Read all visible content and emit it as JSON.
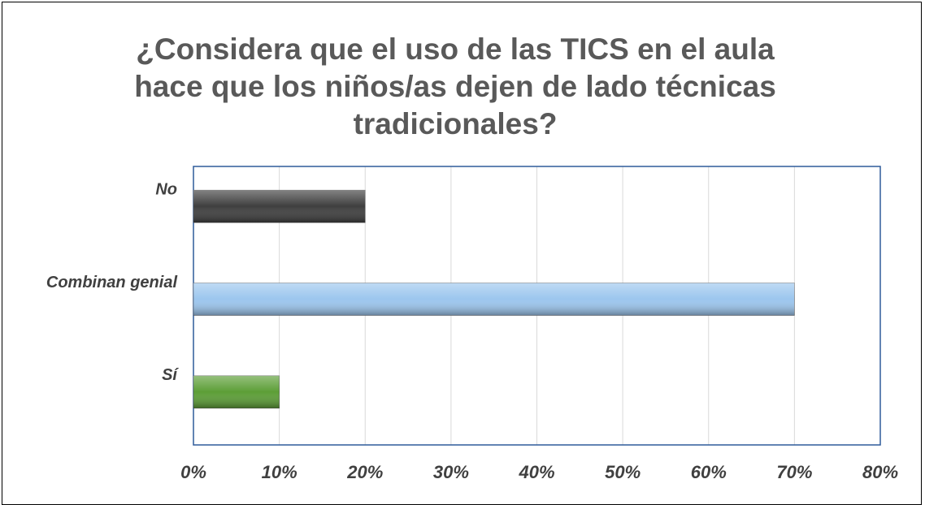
{
  "chart_data": {
    "type": "barh",
    "title": "¿Considera que el uso de las TICS en el aula hace que los niños/as dejen de lado técnicas tradicionales?",
    "categories": [
      "No",
      "Combinan genial",
      "Sí"
    ],
    "values": [
      20,
      70,
      10
    ],
    "colors": [
      "#3f3f3f",
      "#9cc6ee",
      "#5c9e36"
    ],
    "xlim": [
      0,
      80
    ],
    "xticks": [
      {
        "value": 0,
        "label": "0%"
      },
      {
        "value": 10,
        "label": "10%"
      },
      {
        "value": 20,
        "label": "20%"
      },
      {
        "value": 30,
        "label": "30%"
      },
      {
        "value": 40,
        "label": "40%"
      },
      {
        "value": 50,
        "label": "50%"
      },
      {
        "value": 60,
        "label": "60%"
      },
      {
        "value": 70,
        "label": "70%"
      },
      {
        "value": 80,
        "label": "80%"
      }
    ],
    "grid": true
  }
}
